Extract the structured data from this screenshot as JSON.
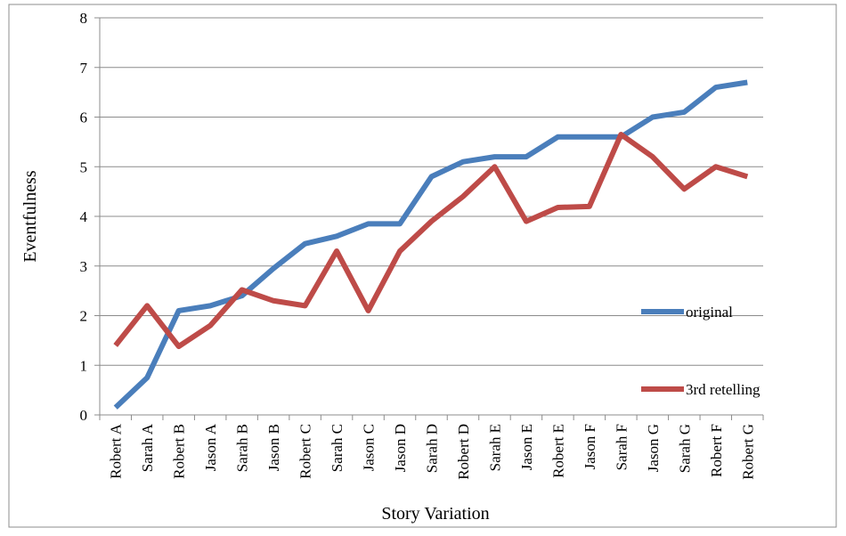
{
  "chart_data": {
    "type": "line",
    "xlabel": "Story Variation",
    "ylabel": "Eventfulness",
    "categories": [
      "Robert A",
      "Sarah A",
      "Robert B",
      "Jason A",
      "Sarah B",
      "Jason B",
      "Robert C",
      "Sarah C",
      "Jason C",
      "Jason D",
      "Sarah D",
      "Robert D",
      "Sarah E",
      "Jason E",
      "Robert E",
      "Jason F",
      "Sarah F",
      "Jason G",
      "Sarah G",
      "Robert F",
      "Robert G"
    ],
    "series": [
      {
        "name": "original",
        "color": "#4a7ebb",
        "values": [
          0.15,
          0.75,
          2.1,
          2.2,
          2.4,
          2.95,
          3.45,
          3.6,
          3.85,
          3.85,
          4.8,
          5.1,
          5.2,
          5.2,
          5.6,
          5.6,
          5.6,
          6.0,
          6.1,
          6.6,
          6.7
        ]
      },
      {
        "name": "3rd retelling",
        "color": "#be4b48",
        "values": [
          1.4,
          2.2,
          1.38,
          1.8,
          2.52,
          2.3,
          2.2,
          3.3,
          2.1,
          3.3,
          3.9,
          4.4,
          5.0,
          3.9,
          4.18,
          4.2,
          5.65,
          5.2,
          4.55,
          5.0,
          4.8
        ]
      }
    ],
    "ylim": [
      0,
      8
    ],
    "yticks": [
      0,
      1,
      2,
      3,
      4,
      5,
      6,
      7,
      8
    ],
    "grid": true,
    "legend": "right"
  }
}
